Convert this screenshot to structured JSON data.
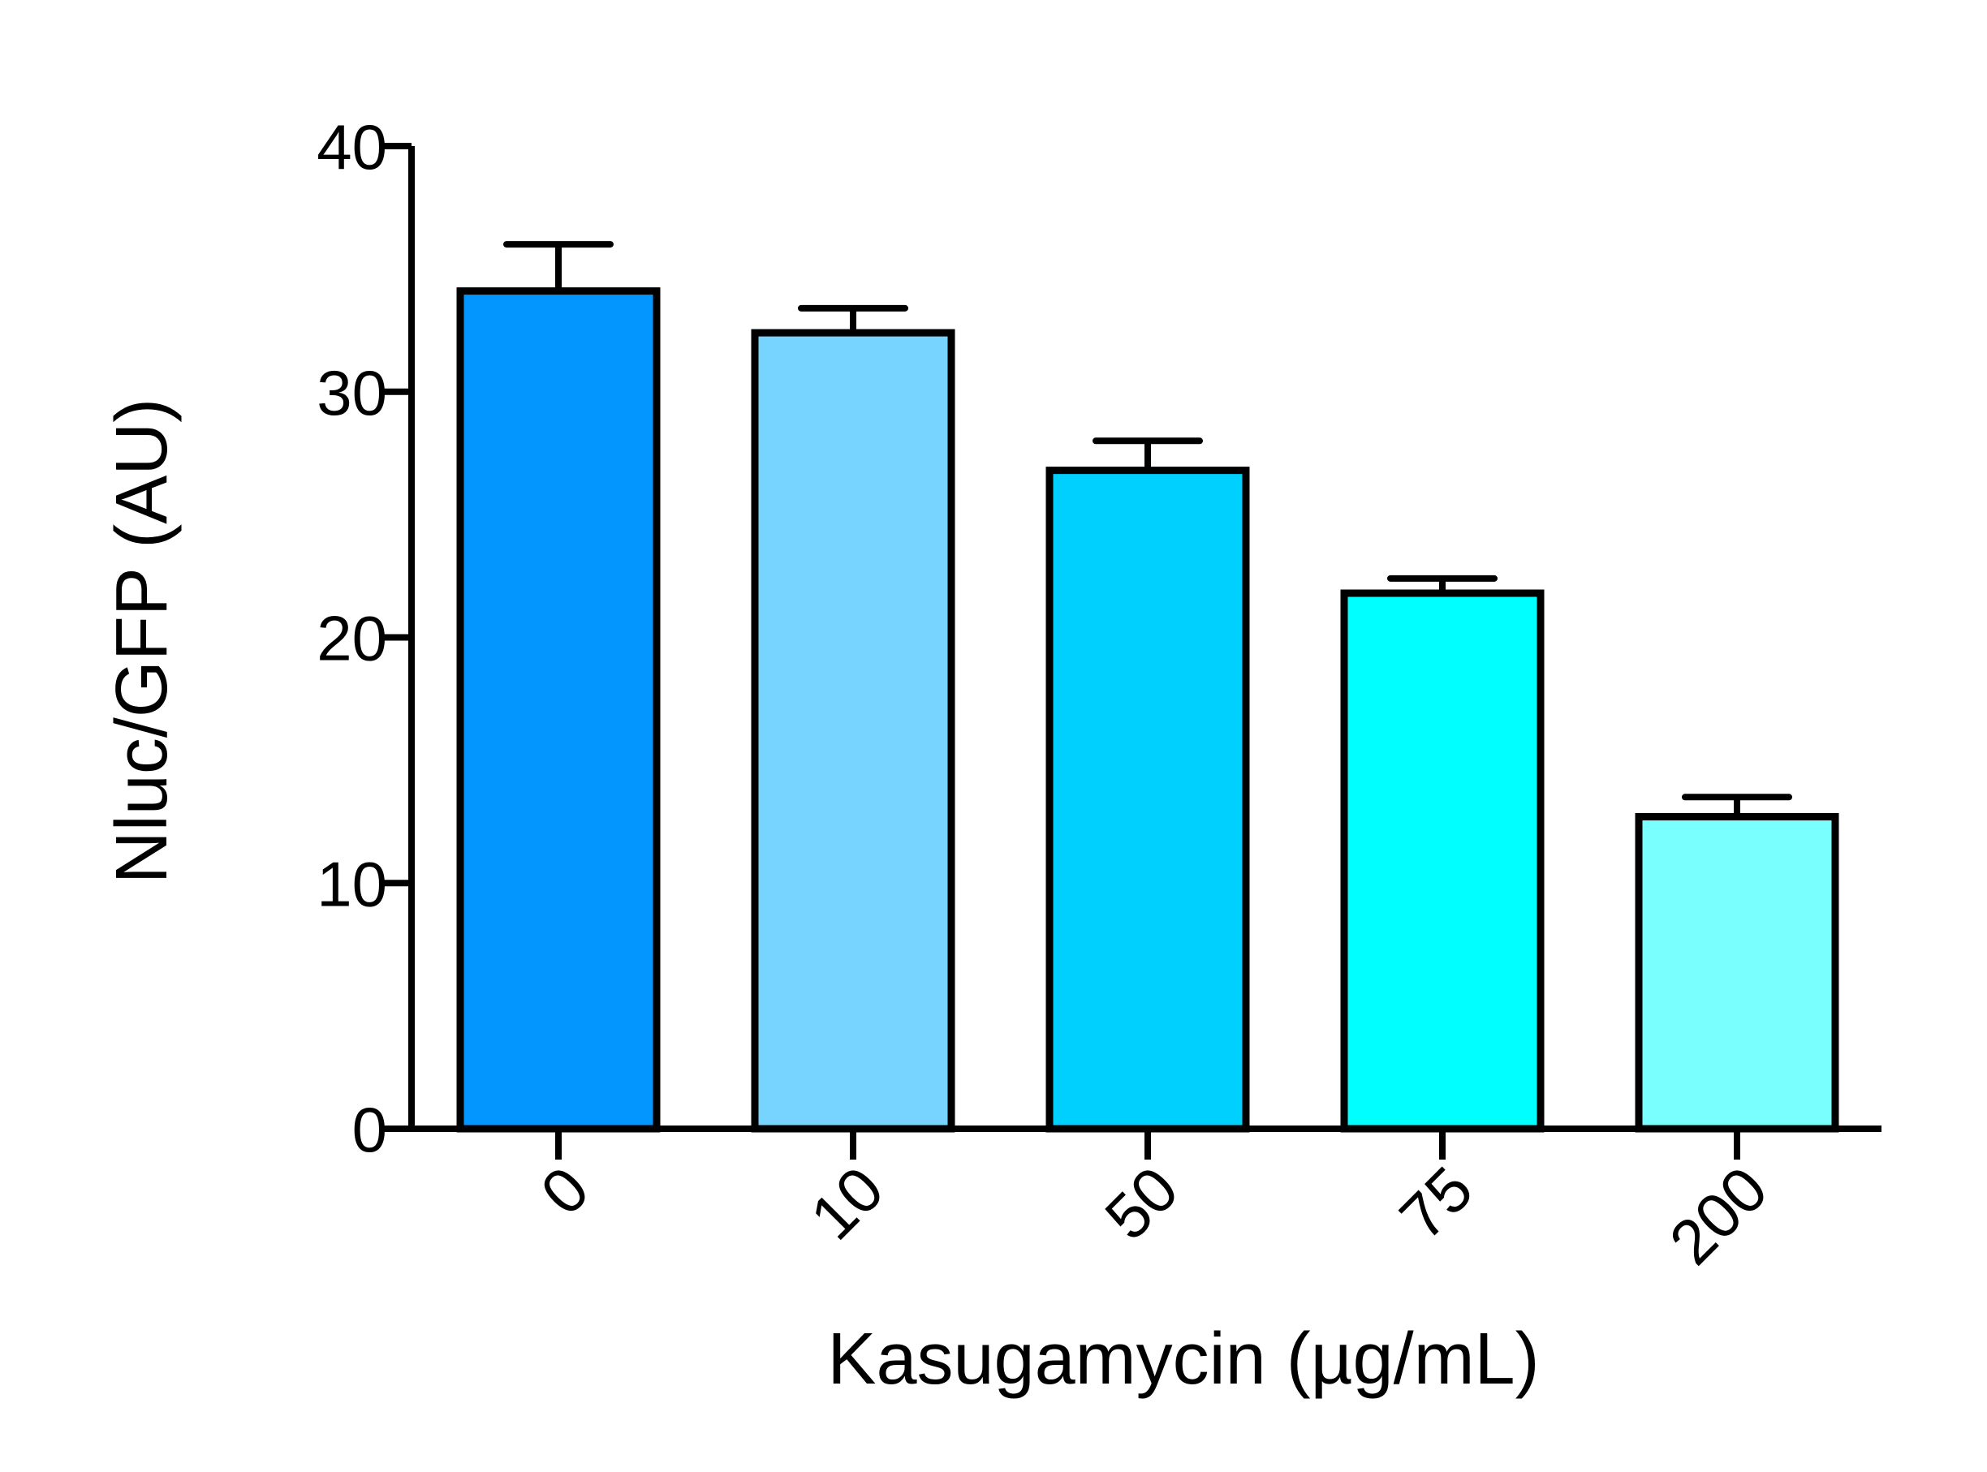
{
  "chart_data": {
    "type": "bar",
    "title": "",
    "xlabel": "Kasugamycin (µg/mL)",
    "ylabel": "Nluc/GFP (AU)",
    "categories": [
      "0",
      "10",
      "50",
      "75",
      "200"
    ],
    "values": [
      34.1,
      32.4,
      26.8,
      21.8,
      12.7
    ],
    "error_upper": [
      36.0,
      33.4,
      28.0,
      22.4,
      13.5
    ],
    "colors": [
      "#0496ff",
      "#77d4fe",
      "#00d0fe",
      "#00ffff",
      "#7affff"
    ],
    "ylim": [
      0,
      40
    ],
    "yticks": [
      "0",
      "10",
      "20",
      "30",
      "40"
    ],
    "grid": false,
    "legend": "none"
  }
}
